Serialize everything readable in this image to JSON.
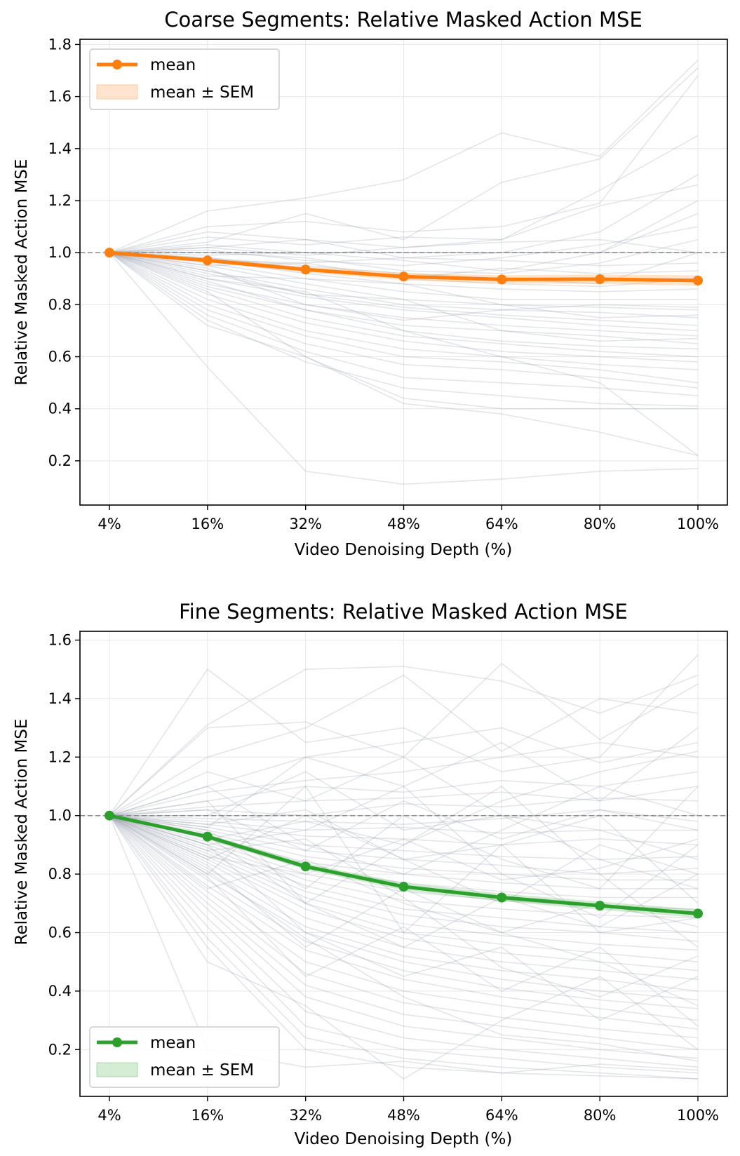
{
  "chart_data": [
    {
      "type": "line",
      "title": "Coarse Segments: Relative Masked Action MSE",
      "xlabel": "Video Denoising Depth (%)",
      "ylabel": "Relative Masked Action MSE",
      "categories": [
        "4%",
        "16%",
        "32%",
        "48%",
        "64%",
        "80%",
        "100%"
      ],
      "ylim": [
        0.03,
        1.82
      ],
      "yticks": [
        0.2,
        0.4,
        0.6,
        0.8,
        1.0,
        1.2,
        1.4,
        1.6,
        1.8
      ],
      "grid": true,
      "reference_line": 1.0,
      "legend_position": "upper-left",
      "legend": [
        "mean",
        "mean ± SEM"
      ],
      "mean_color": "#ff7f0e",
      "trace_color": "#9aa3b1",
      "series": [
        {
          "name": "mean",
          "values": [
            1.0,
            0.97,
            0.935,
            0.908,
            0.897,
            0.898,
            0.893
          ]
        }
      ],
      "sem": [
        0.0,
        0.007,
        0.011,
        0.014,
        0.016,
        0.018,
        0.02
      ],
      "traces": [
        [
          1.0,
          1.16,
          1.21,
          1.28,
          1.46,
          1.37,
          1.74
        ],
        [
          1.0,
          1.04,
          1.15,
          1.05,
          1.27,
          1.36,
          1.71
        ],
        [
          1.0,
          1.1,
          1.12,
          1.08,
          1.1,
          1.19,
          1.68
        ],
        [
          1.0,
          1.06,
          1.03,
          1.06,
          1.05,
          1.24,
          1.45
        ],
        [
          1.0,
          1.08,
          1.05,
          0.98,
          1.0,
          1.08,
          1.3
        ],
        [
          1.0,
          1.02,
          0.99,
          1.02,
          1.05,
          1.18,
          1.26
        ],
        [
          1.0,
          1.03,
          1.0,
          0.97,
          0.93,
          1.0,
          1.2
        ],
        [
          1.0,
          0.99,
          1.0,
          1.0,
          1.0,
          1.0,
          1.15
        ],
        [
          1.0,
          1.01,
          0.97,
          0.95,
          0.98,
          1.03,
          1.1
        ],
        [
          1.0,
          1.0,
          0.98,
          0.93,
          0.92,
          0.96,
          1.05
        ],
        [
          1.0,
          0.98,
          0.95,
          0.92,
          0.9,
          0.88,
          1.0
        ],
        [
          1.0,
          1.0,
          1.0,
          1.0,
          1.0,
          1.0,
          1.0
        ],
        [
          1.0,
          1.0,
          1.0,
          1.0,
          1.0,
          1.0,
          1.0
        ],
        [
          1.0,
          0.98,
          0.94,
          0.9,
          0.88,
          0.87,
          0.9
        ],
        [
          1.0,
          0.97,
          0.92,
          0.88,
          0.86,
          0.85,
          0.86
        ],
        [
          1.0,
          0.96,
          0.9,
          0.85,
          0.82,
          0.82,
          0.82
        ],
        [
          1.0,
          0.95,
          0.88,
          0.82,
          0.8,
          0.79,
          0.78
        ],
        [
          1.0,
          0.93,
          0.86,
          0.8,
          0.78,
          0.77,
          0.75
        ],
        [
          1.0,
          0.92,
          0.84,
          0.79,
          0.76,
          0.74,
          0.72
        ],
        [
          1.0,
          0.9,
          0.83,
          0.78,
          0.75,
          0.72,
          0.7
        ],
        [
          1.0,
          0.88,
          0.8,
          0.75,
          0.72,
          0.7,
          0.68
        ],
        [
          1.0,
          0.87,
          0.78,
          0.72,
          0.7,
          0.68,
          0.65
        ],
        [
          1.0,
          0.86,
          0.75,
          0.68,
          0.65,
          0.62,
          0.6
        ],
        [
          1.0,
          0.84,
          0.73,
          0.66,
          0.62,
          0.6,
          0.58
        ],
        [
          1.0,
          0.82,
          0.7,
          0.63,
          0.6,
          0.57,
          0.55
        ],
        [
          1.0,
          0.8,
          0.68,
          0.6,
          0.58,
          0.55,
          0.5
        ],
        [
          1.0,
          0.78,
          0.65,
          0.57,
          0.55,
          0.52,
          0.48
        ],
        [
          1.0,
          0.76,
          0.62,
          0.52,
          0.5,
          0.48,
          0.45
        ],
        [
          1.0,
          0.74,
          0.58,
          0.48,
          0.45,
          0.42,
          0.41
        ],
        [
          1.0,
          0.72,
          0.6,
          0.44,
          0.4,
          0.4,
          0.4
        ],
        [
          1.0,
          0.9,
          0.85,
          0.7,
          0.6,
          0.5,
          0.22
        ],
        [
          1.0,
          0.56,
          0.16,
          0.11,
          0.13,
          0.16,
          0.17
        ],
        [
          1.0,
          0.85,
          0.6,
          0.42,
          0.38,
          0.31,
          0.22
        ],
        [
          1.0,
          0.94,
          0.8,
          0.74,
          0.78,
          0.8,
          0.79
        ],
        [
          1.0,
          0.91,
          0.9,
          0.88,
          0.8,
          0.75,
          0.76
        ],
        [
          1.0,
          0.95,
          0.96,
          0.9,
          0.94,
          0.92,
          0.93
        ],
        [
          1.0,
          1.02,
          1.05,
          1.02,
          1.04,
          1.05,
          1.0
        ],
        [
          1.0,
          0.89,
          0.78,
          0.7,
          0.66,
          0.64,
          0.63
        ],
        [
          1.0,
          0.93,
          0.84,
          0.82,
          0.7,
          0.66,
          0.67
        ],
        [
          1.0,
          0.97,
          0.96,
          0.98,
          0.97,
          0.95,
          0.96
        ]
      ]
    },
    {
      "type": "line",
      "title": "Fine Segments: Relative Masked Action MSE",
      "xlabel": "Video Denoising Depth (%)",
      "ylabel": "Relative Masked Action MSE",
      "categories": [
        "4%",
        "16%",
        "32%",
        "48%",
        "64%",
        "80%",
        "100%"
      ],
      "ylim": [
        0.04,
        1.63
      ],
      "yticks": [
        0.2,
        0.4,
        0.6,
        0.8,
        1.0,
        1.2,
        1.4,
        1.6
      ],
      "grid": true,
      "reference_line": 1.0,
      "legend_position": "lower-left",
      "legend": [
        "mean",
        "mean ± SEM"
      ],
      "mean_color": "#2ca02c",
      "trace_color": "#9aa3b1",
      "series": [
        {
          "name": "mean",
          "values": [
            1.0,
            0.928,
            0.826,
            0.757,
            0.72,
            0.692,
            0.665
          ]
        }
      ],
      "sem": [
        0.0,
        0.008,
        0.011,
        0.013,
        0.013,
        0.014,
        0.014
      ],
      "traces": [
        [
          1.0,
          1.5,
          1.25,
          1.3,
          1.15,
          1.2,
          1.55
        ],
        [
          1.0,
          1.31,
          1.5,
          1.51,
          1.46,
          1.35,
          1.48
        ],
        [
          1.0,
          1.3,
          1.32,
          1.2,
          1.52,
          1.26,
          1.45
        ],
        [
          1.0,
          1.2,
          1.3,
          1.48,
          1.22,
          1.4,
          1.35
        ],
        [
          1.0,
          1.1,
          1.2,
          1.25,
          1.3,
          1.18,
          1.25
        ],
        [
          1.0,
          1.08,
          1.12,
          1.15,
          1.2,
          1.25,
          1.2
        ],
        [
          1.0,
          1.05,
          1.1,
          1.08,
          1.12,
          1.1,
          1.15
        ],
        [
          1.0,
          1.03,
          1.05,
          1.06,
          1.08,
          1.05,
          1.1
        ],
        [
          1.0,
          1.02,
          1.0,
          1.04,
          1.03,
          1.06,
          1.05
        ],
        [
          1.0,
          1.0,
          1.0,
          1.0,
          1.0,
          1.0,
          1.0
        ],
        [
          1.0,
          0.99,
          0.98,
          0.97,
          0.99,
          1.02,
          0.98
        ],
        [
          1.0,
          0.98,
          0.95,
          0.96,
          0.94,
          0.95,
          0.95
        ],
        [
          1.0,
          0.97,
          0.93,
          0.92,
          0.9,
          0.92,
          0.9
        ],
        [
          1.0,
          0.96,
          0.9,
          0.88,
          0.86,
          0.85,
          0.86
        ],
        [
          1.0,
          0.95,
          0.88,
          0.85,
          0.83,
          0.8,
          0.82
        ],
        [
          1.0,
          0.94,
          0.86,
          0.82,
          0.8,
          0.78,
          0.78
        ],
        [
          1.0,
          0.93,
          0.84,
          0.8,
          0.77,
          0.75,
          0.75
        ],
        [
          1.0,
          0.92,
          0.82,
          0.77,
          0.74,
          0.72,
          0.72
        ],
        [
          1.0,
          0.91,
          0.8,
          0.74,
          0.71,
          0.69,
          0.68
        ],
        [
          1.0,
          0.9,
          0.78,
          0.71,
          0.68,
          0.66,
          0.65
        ],
        [
          1.0,
          0.89,
          0.76,
          0.68,
          0.65,
          0.62,
          0.6
        ],
        [
          1.0,
          0.88,
          0.74,
          0.66,
          0.62,
          0.6,
          0.57
        ],
        [
          1.0,
          0.87,
          0.72,
          0.63,
          0.59,
          0.56,
          0.54
        ],
        [
          1.0,
          0.86,
          0.7,
          0.6,
          0.56,
          0.53,
          0.5
        ],
        [
          1.0,
          0.85,
          0.68,
          0.58,
          0.53,
          0.5,
          0.47
        ],
        [
          1.0,
          0.84,
          0.65,
          0.55,
          0.5,
          0.47,
          0.44
        ],
        [
          1.0,
          0.82,
          0.62,
          0.52,
          0.47,
          0.44,
          0.4
        ],
        [
          1.0,
          0.8,
          0.6,
          0.5,
          0.44,
          0.4,
          0.37
        ],
        [
          1.0,
          0.78,
          0.57,
          0.47,
          0.41,
          0.37,
          0.34
        ],
        [
          1.0,
          0.76,
          0.54,
          0.44,
          0.38,
          0.34,
          0.3
        ],
        [
          1.0,
          0.74,
          0.5,
          0.4,
          0.35,
          0.31,
          0.27
        ],
        [
          1.0,
          0.72,
          0.46,
          0.36,
          0.31,
          0.27,
          0.24
        ],
        [
          1.0,
          0.7,
          0.42,
          0.32,
          0.28,
          0.24,
          0.2
        ],
        [
          1.0,
          0.68,
          0.38,
          0.28,
          0.24,
          0.2,
          0.17
        ],
        [
          1.0,
          0.65,
          0.33,
          0.24,
          0.2,
          0.17,
          0.14
        ],
        [
          1.0,
          0.62,
          0.28,
          0.2,
          0.17,
          0.14,
          0.12
        ],
        [
          1.0,
          0.58,
          0.24,
          0.17,
          0.14,
          0.12,
          0.1
        ],
        [
          1.0,
          0.55,
          0.2,
          0.14,
          0.12,
          0.11,
          0.1
        ],
        [
          1.0,
          0.2,
          0.14,
          0.16,
          0.12,
          0.15,
          0.13
        ],
        [
          1.0,
          0.5,
          0.35,
          0.1,
          0.3,
          0.45,
          0.2
        ],
        [
          1.0,
          1.05,
          0.7,
          0.9,
          1.1,
          0.8,
          0.55
        ],
        [
          1.0,
          0.8,
          1.1,
          0.6,
          0.9,
          1.0,
          0.7
        ],
        [
          1.0,
          0.9,
          0.95,
          1.1,
          0.8,
          0.65,
          0.9
        ],
        [
          1.0,
          1.1,
          0.9,
          0.8,
          0.95,
          1.1,
          1.0
        ],
        [
          1.0,
          0.85,
          1.0,
          0.85,
          0.7,
          0.9,
          0.8
        ],
        [
          1.0,
          0.95,
          0.75,
          1.0,
          0.85,
          0.75,
          1.1
        ],
        [
          1.0,
          1.0,
          1.15,
          0.95,
          1.0,
          0.85,
          0.75
        ],
        [
          1.0,
          0.75,
          0.85,
          0.7,
          0.6,
          0.7,
          0.62
        ],
        [
          1.0,
          0.83,
          0.55,
          0.75,
          0.6,
          0.5,
          0.35
        ],
        [
          1.0,
          0.9,
          0.6,
          0.45,
          0.55,
          0.3,
          0.45
        ],
        [
          1.0,
          1.15,
          1.05,
          1.2,
          1.0,
          0.95,
          0.85
        ],
        [
          1.0,
          0.92,
          0.98,
          0.9,
          1.05,
          1.15,
          1.22
        ],
        [
          1.0,
          0.86,
          0.8,
          0.92,
          0.78,
          0.82,
          0.92
        ],
        [
          1.0,
          0.97,
          1.02,
          0.85,
          0.9,
          0.6,
          0.65
        ],
        [
          1.0,
          0.79,
          0.45,
          0.62,
          0.4,
          0.55,
          0.28
        ],
        [
          1.0,
          0.88,
          0.92,
          0.72,
          0.48,
          0.38,
          0.52
        ],
        [
          1.0,
          1.02,
          0.88,
          1.05,
          0.92,
          1.02,
          0.95
        ],
        [
          1.0,
          0.93,
          0.7,
          0.55,
          0.72,
          0.62,
          0.8
        ],
        [
          1.0,
          0.81,
          0.58,
          0.38,
          0.25,
          0.22,
          0.16
        ],
        [
          1.0,
          0.96,
          1.2,
          1.1,
          1.25,
          1.05,
          1.3
        ]
      ]
    }
  ]
}
